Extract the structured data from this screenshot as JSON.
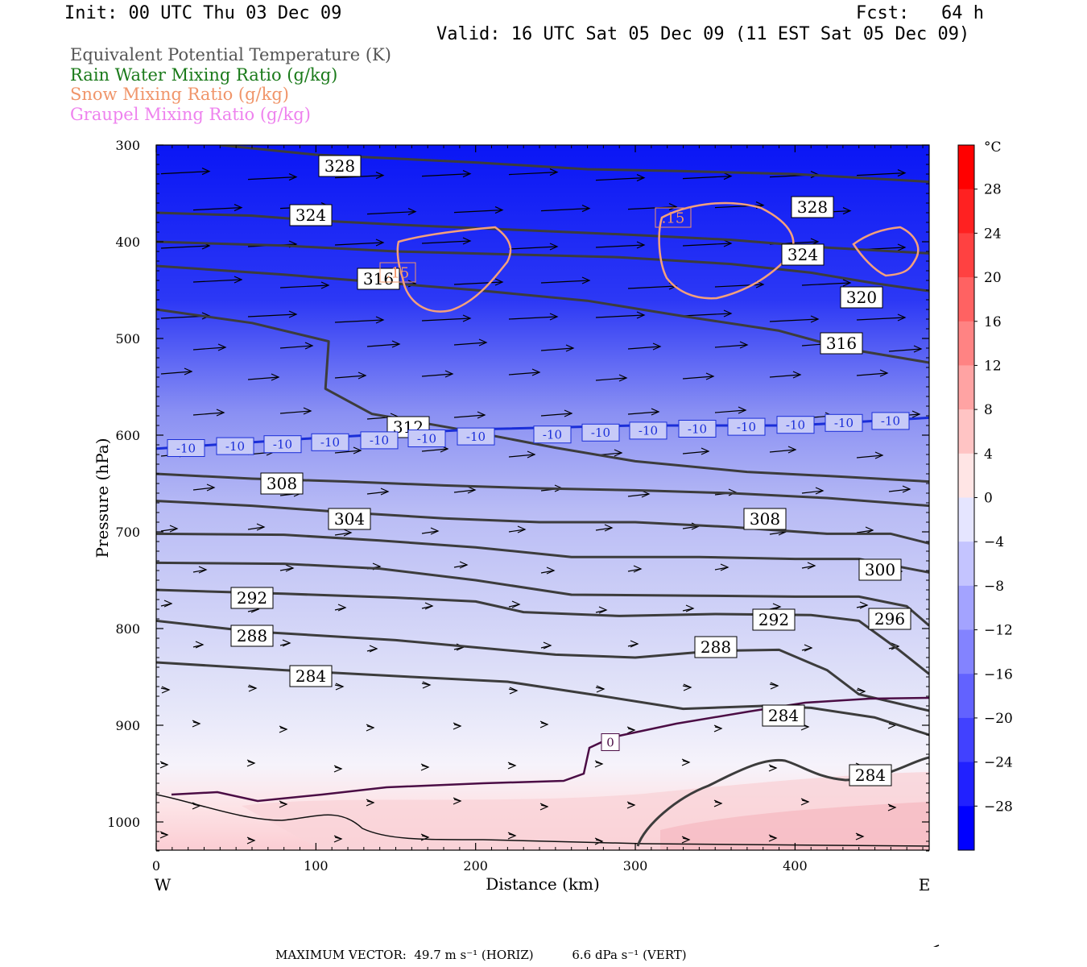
{
  "header": {
    "init": "Init: 00 UTC Thu 03 Dec 09",
    "fcst": "Fcst:   64 h",
    "valid": "Valid: 16 UTC Sat 05 Dec 09 (11 EST Sat 05 Dec 09)"
  },
  "legend": [
    {
      "text": "Equivalent Potential Temperature (K)",
      "color": "#555555"
    },
    {
      "text": "Rain Water Mixing Ratio (g/kg)",
      "color": "#1a7a1a"
    },
    {
      "text": "Snow Mixing Ratio (g/kg)",
      "color": "#f0956a"
    },
    {
      "text": "Graupel Mixing Ratio (g/kg)",
      "color": "#ee82ee"
    }
  ],
  "chart_data": {
    "type": "heatmap",
    "title": "Equivalent Potential Temperature (K)",
    "xlabel": "Distance (km)",
    "ylabel": "Pressure (hPa)",
    "xlim": [
      0,
      484
    ],
    "ylim": [
      1030,
      300
    ],
    "x_ticks": [
      0,
      100,
      200,
      300,
      400
    ],
    "y_ticks": [
      300,
      400,
      500,
      600,
      700,
      800,
      900,
      1000
    ],
    "x_end_labels": {
      "left": "W",
      "right": "E"
    },
    "colorbar": {
      "unit": "°C",
      "ticks": [
        28,
        24,
        20,
        16,
        12,
        8,
        4,
        0,
        -4,
        -8,
        -12,
        -16,
        -20,
        -24,
        -28
      ],
      "tick_labels": [
        "28",
        "24",
        "20",
        "16",
        "12",
        "8",
        "4",
        "0",
        "−4",
        "−8",
        "−12",
        "−16",
        "−20",
        "−24",
        "−28"
      ],
      "range": [
        -32,
        32
      ]
    },
    "theta_e_contours": [
      {
        "value": 328,
        "points": [
          [
            40,
            300
          ],
          [
            100,
            310
          ],
          [
            200,
            318
          ],
          [
            270,
            325
          ],
          [
            330,
            327
          ],
          [
            400,
            330
          ],
          [
            484,
            338
          ]
        ]
      },
      {
        "value": 324,
        "points": [
          [
            0,
            370
          ],
          [
            60,
            373
          ],
          [
            100,
            378
          ],
          [
            160,
            383
          ],
          [
            230,
            388
          ],
          [
            300,
            393
          ],
          [
            360,
            398
          ],
          [
            420,
            406
          ],
          [
            484,
            412
          ]
        ]
      },
      {
        "value": 320,
        "points": [
          [
            0,
            400
          ],
          [
            80,
            404
          ],
          [
            150,
            410
          ],
          [
            220,
            413
          ],
          [
            290,
            416
          ],
          [
            360,
            423
          ],
          [
            410,
            432
          ],
          [
            450,
            443
          ],
          [
            484,
            451
          ]
        ]
      },
      {
        "value": 316,
        "points": [
          [
            0,
            425
          ],
          [
            80,
            434
          ],
          [
            140,
            442
          ],
          [
            200,
            450
          ],
          [
            270,
            461
          ],
          [
            330,
            477
          ],
          [
            390,
            492
          ],
          [
            430,
            510
          ],
          [
            484,
            525
          ]
        ]
      },
      {
        "value": 312,
        "points": [
          [
            0,
            470
          ],
          [
            60,
            484
          ],
          [
            108,
            503
          ],
          [
            106,
            552
          ],
          [
            135,
            578
          ],
          [
            190,
            594
          ],
          [
            250,
            613
          ],
          [
            300,
            627
          ],
          [
            370,
            638
          ],
          [
            430,
            643
          ],
          [
            484,
            648
          ]
        ]
      },
      {
        "value": 308,
        "points": [
          [
            0,
            640
          ],
          [
            60,
            645
          ],
          [
            120,
            648
          ],
          [
            180,
            652
          ],
          [
            240,
            655
          ],
          [
            300,
            657
          ],
          [
            360,
            660
          ],
          [
            420,
            665
          ],
          [
            484,
            673
          ]
        ]
      },
      {
        "value": 304,
        "points": [
          [
            0,
            668
          ],
          [
            60,
            673
          ],
          [
            120,
            680
          ],
          [
            180,
            686
          ],
          [
            240,
            690
          ],
          [
            300,
            690
          ],
          [
            360,
            695
          ],
          [
            420,
            702
          ],
          [
            460,
            702
          ],
          [
            484,
            712
          ]
        ]
      },
      {
        "value": 300,
        "points": [
          [
            0,
            702
          ],
          [
            80,
            703
          ],
          [
            140,
            709
          ],
          [
            200,
            716
          ],
          [
            260,
            726
          ],
          [
            340,
            726
          ],
          [
            400,
            728
          ],
          [
            440,
            728
          ],
          [
            484,
            742
          ]
        ]
      },
      {
        "value": 296,
        "points": [
          [
            0,
            732
          ],
          [
            80,
            733
          ],
          [
            140,
            738
          ],
          [
            200,
            750
          ],
          [
            260,
            765
          ],
          [
            340,
            766
          ],
          [
            400,
            767
          ],
          [
            440,
            767
          ],
          [
            470,
            777
          ],
          [
            484,
            797
          ]
        ]
      },
      {
        "value": 292,
        "points": [
          [
            0,
            760
          ],
          [
            80,
            764
          ],
          [
            150,
            768
          ],
          [
            200,
            772
          ],
          [
            230,
            783
          ],
          [
            290,
            787
          ],
          [
            350,
            785
          ],
          [
            410,
            786
          ],
          [
            440,
            792
          ],
          [
            465,
            822
          ],
          [
            484,
            847
          ]
        ]
      },
      {
        "value": 288,
        "points": [
          [
            0,
            792
          ],
          [
            60,
            803
          ],
          [
            150,
            812
          ],
          [
            250,
            827
          ],
          [
            300,
            830
          ],
          [
            350,
            823
          ],
          [
            390,
            822
          ],
          [
            420,
            843
          ],
          [
            440,
            868
          ],
          [
            484,
            885
          ]
        ]
      },
      {
        "value": 284,
        "points": [
          [
            0,
            835
          ],
          [
            80,
            843
          ],
          [
            160,
            850
          ],
          [
            220,
            855
          ],
          [
            280,
            870
          ],
          [
            330,
            883
          ],
          [
            380,
            880
          ],
          [
            410,
            882
          ],
          [
            450,
            892
          ],
          [
            484,
            910
          ]
        ]
      }
    ],
    "isotherm": {
      "values": [
        -10,
        0
      ],
      "minus10_points": [
        [
          0,
          614
        ],
        [
          100,
          603
        ],
        [
          200,
          594
        ],
        [
          300,
          590
        ],
        [
          400,
          590
        ],
        [
          484,
          582
        ]
      ]
    },
    "snow_values": [
      0.15
    ],
    "wind_vector_reference": {
      "label": "MAXIMUM VECTOR:",
      "horiz": "49.7 m s⁻¹ (HORIZ)",
      "vert": "6.6 dPa s⁻¹ (VERT)"
    }
  },
  "footer": "MAXIMUM VECTOR:  49.7 m s⁻¹ (HORIZ)          6.6 dPa s⁻¹ (VERT)"
}
